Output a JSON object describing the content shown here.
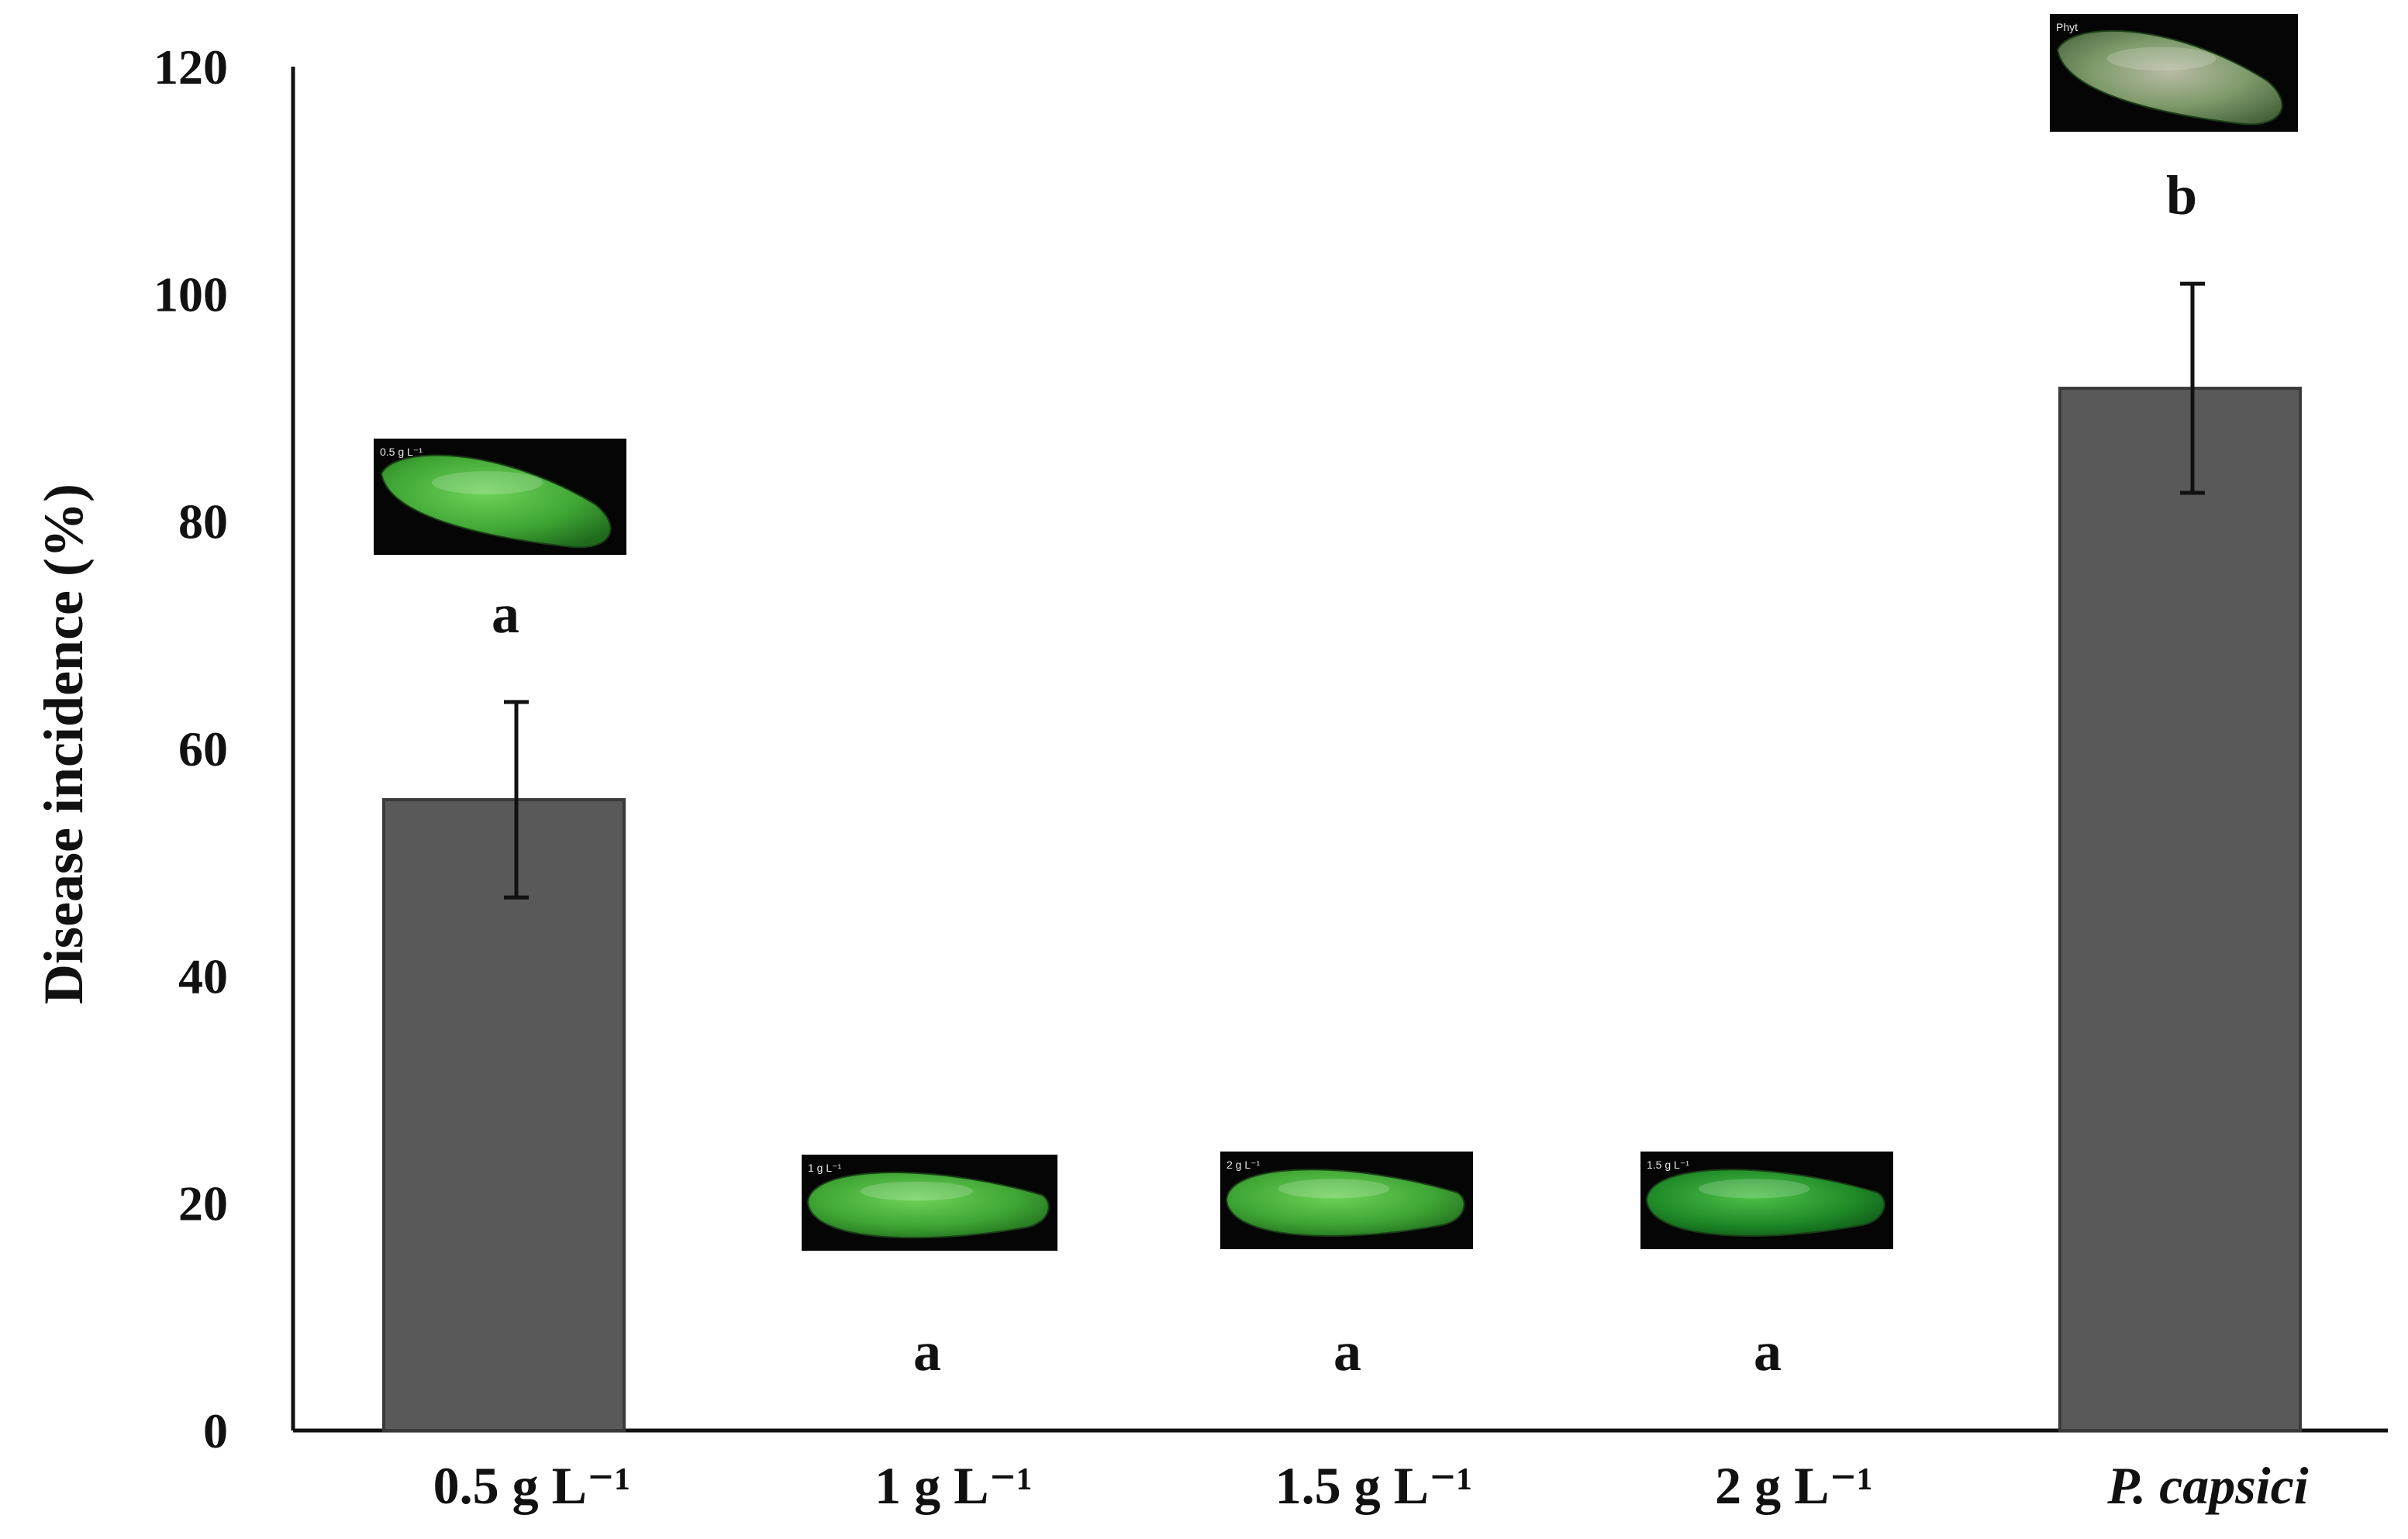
{
  "chart_data": {
    "type": "bar",
    "title": "",
    "xlabel": "",
    "ylabel": "Disease incidence (%)",
    "ylim": [
      0,
      120
    ],
    "yticks": [
      0,
      20,
      40,
      60,
      80,
      100,
      120
    ],
    "grid": false,
    "legend": "none",
    "bar_color": "#595959",
    "categories": [
      "0.5 g L⁻¹",
      "1 g L⁻¹",
      "1.5 g L⁻¹",
      "2 g L⁻¹",
      "P. capsici"
    ],
    "italic_categories": [
      false,
      false,
      false,
      false,
      true
    ],
    "values": [
      55.5,
      0,
      0,
      0,
      91.7
    ],
    "error": [
      8.6,
      0,
      0,
      0,
      9.2
    ],
    "significance": [
      "a",
      "a",
      "a",
      "a",
      "b"
    ],
    "photo_captions": [
      "0.5 g L⁻¹",
      "1 g L⁻¹",
      "2 g L⁻¹",
      "1.5 g L⁻¹",
      "Phyt"
    ]
  }
}
